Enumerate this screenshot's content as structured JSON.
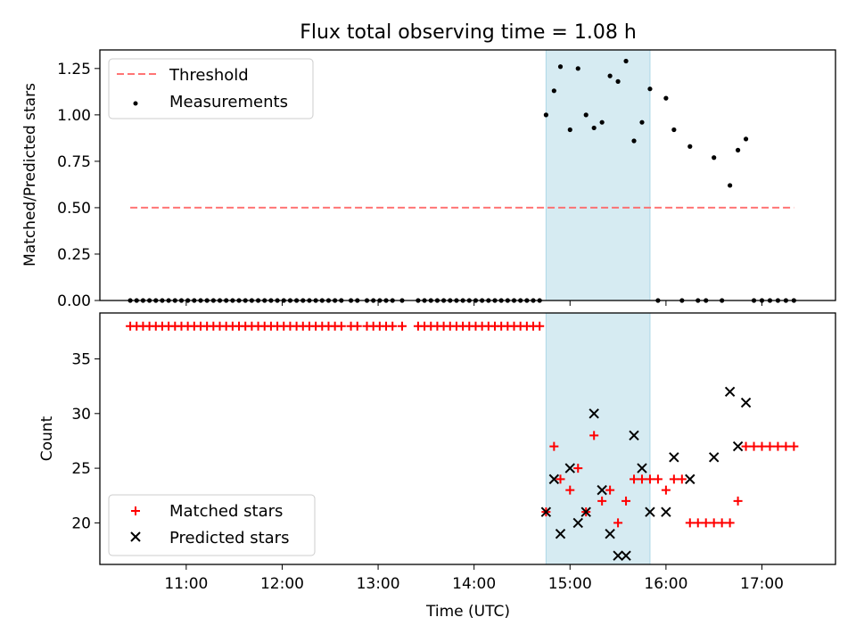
{
  "chart_data": [
    {
      "type": "scatter",
      "title": "Flux total observing time = 1.08 h",
      "xlabel": "",
      "ylabel": "Matched/Predicted stars",
      "xlim": [
        "10:06",
        "17:46"
      ],
      "ylim": [
        0,
        1.35
      ],
      "yticks": [
        "0.00",
        "0.25",
        "0.50",
        "0.75",
        "1.00",
        "1.25"
      ],
      "shaded_span": [
        "14:45",
        "15:50"
      ],
      "shade_color": "#add8e6",
      "threshold": {
        "name": "Threshold",
        "value": 0.5,
        "x_range": [
          "10:25",
          "17:20"
        ],
        "color": "#ff6666",
        "style": "dashed"
      },
      "series": [
        {
          "name": "Measurements",
          "marker": "dot",
          "color": "#000000",
          "points": [
            [
              "10:25",
              0
            ],
            [
              "10:29",
              0
            ],
            [
              "10:33",
              0
            ],
            [
              "10:37",
              0
            ],
            [
              "10:41",
              0
            ],
            [
              "10:45",
              0
            ],
            [
              "10:49",
              0
            ],
            [
              "10:53",
              0
            ],
            [
              "10:57",
              0
            ],
            [
              "11:01",
              0
            ],
            [
              "11:05",
              0
            ],
            [
              "11:09",
              0
            ],
            [
              "11:13",
              0
            ],
            [
              "11:17",
              0
            ],
            [
              "11:21",
              0
            ],
            [
              "11:25",
              0
            ],
            [
              "11:29",
              0
            ],
            [
              "11:33",
              0
            ],
            [
              "11:37",
              0
            ],
            [
              "11:41",
              0
            ],
            [
              "11:45",
              0
            ],
            [
              "11:49",
              0
            ],
            [
              "11:53",
              0
            ],
            [
              "11:57",
              0
            ],
            [
              "12:01",
              0
            ],
            [
              "12:05",
              0
            ],
            [
              "12:09",
              0
            ],
            [
              "12:13",
              0
            ],
            [
              "12:17",
              0
            ],
            [
              "12:21",
              0
            ],
            [
              "12:25",
              0
            ],
            [
              "12:29",
              0
            ],
            [
              "12:33",
              0
            ],
            [
              "12:37",
              0
            ],
            [
              "12:43",
              0
            ],
            [
              "12:47",
              0
            ],
            [
              "12:53",
              0
            ],
            [
              "12:57",
              0
            ],
            [
              "13:01",
              0
            ],
            [
              "13:05",
              0
            ],
            [
              "13:09",
              0
            ],
            [
              "13:15",
              0
            ],
            [
              "13:25",
              0
            ],
            [
              "13:29",
              0
            ],
            [
              "13:33",
              0
            ],
            [
              "13:37",
              0
            ],
            [
              "13:41",
              0
            ],
            [
              "13:45",
              0
            ],
            [
              "13:49",
              0
            ],
            [
              "13:53",
              0
            ],
            [
              "13:57",
              0
            ],
            [
              "14:01",
              0
            ],
            [
              "14:05",
              0
            ],
            [
              "14:09",
              0
            ],
            [
              "14:13",
              0
            ],
            [
              "14:17",
              0
            ],
            [
              "14:21",
              0
            ],
            [
              "14:25",
              0
            ],
            [
              "14:29",
              0
            ],
            [
              "14:33",
              0
            ],
            [
              "14:37",
              0
            ],
            [
              "14:41",
              0
            ],
            [
              "14:45",
              1.0
            ],
            [
              "14:50",
              1.13
            ],
            [
              "14:54",
              1.26
            ],
            [
              "15:00",
              0.92
            ],
            [
              "15:05",
              1.25
            ],
            [
              "15:10",
              1.0
            ],
            [
              "15:15",
              0.93
            ],
            [
              "15:20",
              0.96
            ],
            [
              "15:25",
              1.21
            ],
            [
              "15:30",
              1.18
            ],
            [
              "15:35",
              1.29
            ],
            [
              "15:40",
              0.86
            ],
            [
              "15:45",
              0.96
            ],
            [
              "15:50",
              1.14
            ],
            [
              "15:55",
              0
            ],
            [
              "16:00",
              1.09
            ],
            [
              "16:05",
              0.92
            ],
            [
              "16:10",
              0
            ],
            [
              "16:15",
              0.83
            ],
            [
              "16:20",
              0
            ],
            [
              "16:25",
              0
            ],
            [
              "16:30",
              0.77
            ],
            [
              "16:35",
              0
            ],
            [
              "16:40",
              0.62
            ],
            [
              "16:45",
              0.81
            ],
            [
              "16:50",
              0.87
            ],
            [
              "16:55",
              0
            ],
            [
              "17:00",
              0
            ],
            [
              "17:05",
              0
            ],
            [
              "17:10",
              0
            ],
            [
              "17:15",
              0
            ],
            [
              "17:20",
              0
            ]
          ]
        }
      ],
      "legend": "upper-left"
    },
    {
      "type": "scatter",
      "title": "",
      "xlabel": "Time (UTC)",
      "ylabel": "Count",
      "xlim": [
        "10:06",
        "17:46"
      ],
      "ylim": [
        16.2,
        39.2
      ],
      "xticks": [
        "11:00",
        "12:00",
        "13:00",
        "14:00",
        "15:00",
        "16:00",
        "17:00"
      ],
      "yticks": [
        "20",
        "25",
        "30",
        "35"
      ],
      "shaded_span": [
        "14:45",
        "15:50"
      ],
      "series": [
        {
          "name": "Matched stars",
          "marker": "plus",
          "color": "#ff0000",
          "points": [
            [
              "10:25",
              38
            ],
            [
              "10:29",
              38
            ],
            [
              "10:33",
              38
            ],
            [
              "10:37",
              38
            ],
            [
              "10:41",
              38
            ],
            [
              "10:45",
              38
            ],
            [
              "10:49",
              38
            ],
            [
              "10:53",
              38
            ],
            [
              "10:57",
              38
            ],
            [
              "11:01",
              38
            ],
            [
              "11:05",
              38
            ],
            [
              "11:09",
              38
            ],
            [
              "11:13",
              38
            ],
            [
              "11:17",
              38
            ],
            [
              "11:21",
              38
            ],
            [
              "11:25",
              38
            ],
            [
              "11:29",
              38
            ],
            [
              "11:33",
              38
            ],
            [
              "11:37",
              38
            ],
            [
              "11:41",
              38
            ],
            [
              "11:45",
              38
            ],
            [
              "11:49",
              38
            ],
            [
              "11:53",
              38
            ],
            [
              "11:57",
              38
            ],
            [
              "12:01",
              38
            ],
            [
              "12:05",
              38
            ],
            [
              "12:09",
              38
            ],
            [
              "12:13",
              38
            ],
            [
              "12:17",
              38
            ],
            [
              "12:21",
              38
            ],
            [
              "12:25",
              38
            ],
            [
              "12:29",
              38
            ],
            [
              "12:33",
              38
            ],
            [
              "12:37",
              38
            ],
            [
              "12:43",
              38
            ],
            [
              "12:47",
              38
            ],
            [
              "12:53",
              38
            ],
            [
              "12:57",
              38
            ],
            [
              "13:01",
              38
            ],
            [
              "13:05",
              38
            ],
            [
              "13:09",
              38
            ],
            [
              "13:15",
              38
            ],
            [
              "13:25",
              38
            ],
            [
              "13:29",
              38
            ],
            [
              "13:33",
              38
            ],
            [
              "13:37",
              38
            ],
            [
              "13:41",
              38
            ],
            [
              "13:45",
              38
            ],
            [
              "13:49",
              38
            ],
            [
              "13:53",
              38
            ],
            [
              "13:57",
              38
            ],
            [
              "14:01",
              38
            ],
            [
              "14:05",
              38
            ],
            [
              "14:09",
              38
            ],
            [
              "14:13",
              38
            ],
            [
              "14:17",
              38
            ],
            [
              "14:21",
              38
            ],
            [
              "14:25",
              38
            ],
            [
              "14:29",
              38
            ],
            [
              "14:33",
              38
            ],
            [
              "14:37",
              38
            ],
            [
              "14:41",
              38
            ],
            [
              "14:45",
              21
            ],
            [
              "14:50",
              27
            ],
            [
              "14:54",
              24
            ],
            [
              "15:00",
              23
            ],
            [
              "15:05",
              25
            ],
            [
              "15:10",
              21
            ],
            [
              "15:15",
              28
            ],
            [
              "15:20",
              22
            ],
            [
              "15:25",
              23
            ],
            [
              "15:30",
              20
            ],
            [
              "15:35",
              22
            ],
            [
              "15:40",
              24
            ],
            [
              "15:45",
              24
            ],
            [
              "15:50",
              24
            ],
            [
              "15:55",
              24
            ],
            [
              "16:00",
              23
            ],
            [
              "16:05",
              24
            ],
            [
              "16:10",
              24
            ],
            [
              "16:15",
              20
            ],
            [
              "16:20",
              20
            ],
            [
              "16:25",
              20
            ],
            [
              "16:30",
              20
            ],
            [
              "16:35",
              20
            ],
            [
              "16:40",
              20
            ],
            [
              "16:45",
              22
            ],
            [
              "16:50",
              27
            ],
            [
              "16:55",
              27
            ],
            [
              "17:00",
              27
            ],
            [
              "17:05",
              27
            ],
            [
              "17:10",
              27
            ],
            [
              "17:15",
              27
            ],
            [
              "17:20",
              27
            ]
          ]
        },
        {
          "name": "Predicted stars",
          "marker": "x",
          "color": "#000000",
          "points": [
            [
              "14:45",
              21
            ],
            [
              "14:50",
              24
            ],
            [
              "14:54",
              19
            ],
            [
              "15:00",
              25
            ],
            [
              "15:05",
              20
            ],
            [
              "15:10",
              21
            ],
            [
              "15:15",
              30
            ],
            [
              "15:20",
              23
            ],
            [
              "15:25",
              19
            ],
            [
              "15:30",
              17
            ],
            [
              "15:35",
              17
            ],
            [
              "15:40",
              28
            ],
            [
              "15:45",
              25
            ],
            [
              "15:50",
              21
            ],
            [
              "16:00",
              21
            ],
            [
              "16:05",
              26
            ],
            [
              "16:15",
              24
            ],
            [
              "16:30",
              26
            ],
            [
              "16:40",
              32
            ],
            [
              "16:45",
              27
            ],
            [
              "16:50",
              31
            ]
          ]
        }
      ],
      "legend": "lower-left"
    }
  ]
}
